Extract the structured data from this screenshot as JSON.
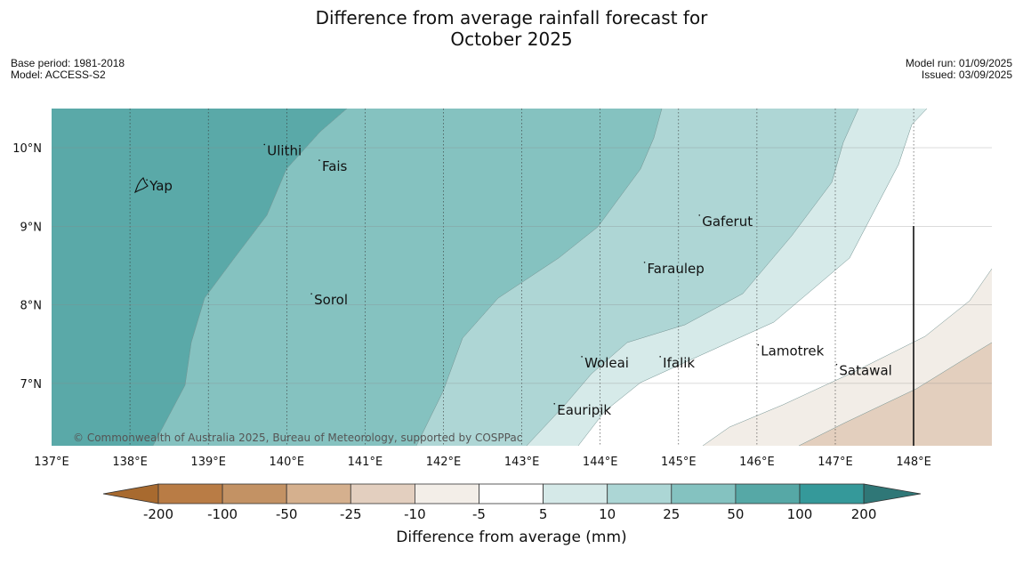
{
  "title": {
    "line1": "Difference from average rainfall forecast for",
    "line2": "October 2025"
  },
  "meta": {
    "base_period": "Base period: 1981-2018",
    "model": "Model: ACCESS-S2",
    "model_run": "Model run: 01/09/2025",
    "issued": "Issued: 03/09/2025"
  },
  "map": {
    "lon_range": [
      137,
      149
    ],
    "lat_range": [
      6.2,
      10.5
    ],
    "lon_ticks": [
      "137°E",
      "138°E",
      "139°E",
      "140°E",
      "141°E",
      "142°E",
      "143°E",
      "144°E",
      "145°E",
      "146°E",
      "147°E",
      "148°E"
    ],
    "lat_ticks": [
      "10°N",
      "9°N",
      "8°N",
      "7°N"
    ],
    "places": [
      {
        "name": "Yap",
        "lon": 138.25,
        "lat": 9.5
      },
      {
        "name": "Ulithi",
        "lon": 139.75,
        "lat": 9.95
      },
      {
        "name": "Fais",
        "lon": 140.45,
        "lat": 9.75
      },
      {
        "name": "Gaferut",
        "lon": 145.3,
        "lat": 9.05
      },
      {
        "name": "Faraulep",
        "lon": 144.6,
        "lat": 8.45
      },
      {
        "name": "Sorol",
        "lon": 140.35,
        "lat": 8.05
      },
      {
        "name": "Woleai",
        "lon": 143.8,
        "lat": 7.25
      },
      {
        "name": "Ifalik",
        "lon": 144.8,
        "lat": 7.25
      },
      {
        "name": "Lamotrek",
        "lon": 146.05,
        "lat": 7.4
      },
      {
        "name": "Satawal",
        "lon": 147.05,
        "lat": 7.15
      },
      {
        "name": "Eauripik",
        "lon": 143.45,
        "lat": 6.65
      }
    ],
    "copyright": "© Commonwealth of Australia 2025, Bureau of Meteorology, supported by COSPPac"
  },
  "colorbar": {
    "labels": [
      "-200",
      "-100",
      "-50",
      "-25",
      "-10",
      "-5",
      "5",
      "10",
      "25",
      "50",
      "100",
      "200"
    ],
    "colors": [
      "#a86a2f",
      "#b97c45",
      "#c39264",
      "#d5b08e",
      "#e3cfbf",
      "#f3eee8",
      "#ffffff",
      "#d5e9e8",
      "#acd6d5",
      "#84c2c0",
      "#56a8a6",
      "#35999a",
      "#2f7777"
    ],
    "label": "Difference from average (mm)"
  }
}
